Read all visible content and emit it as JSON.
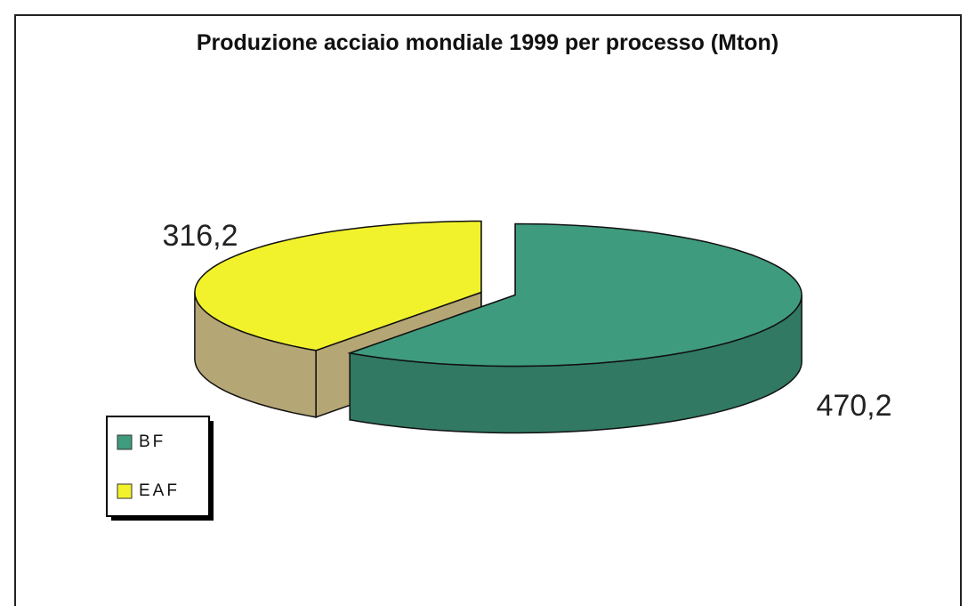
{
  "chart_data": {
    "type": "pie3d",
    "title": "Produzione acciaio mondiale 1999 per processo (Mton)",
    "categories": [
      "BF",
      "EAF"
    ],
    "values": [
      470.2,
      316.2
    ],
    "value_labels": [
      "470,2",
      "316,2"
    ],
    "colors": [
      "#3f9b7d",
      "#f2f22c"
    ],
    "legend": "lower left"
  }
}
